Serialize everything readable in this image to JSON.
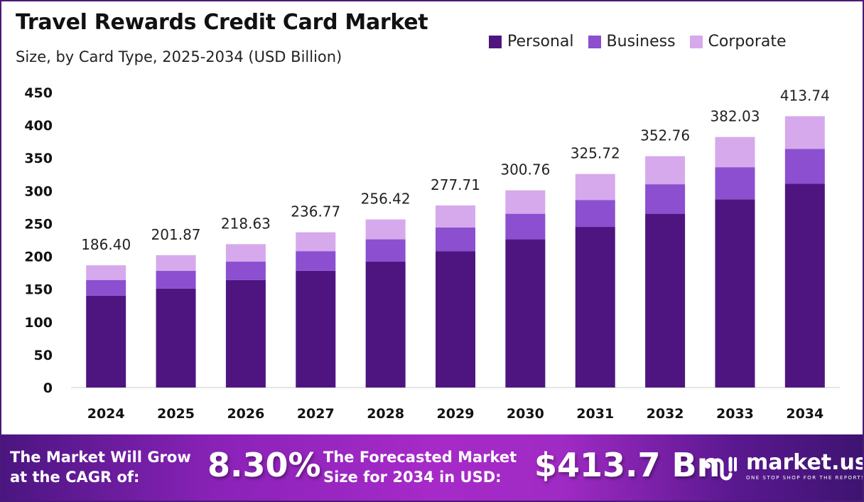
{
  "header": {
    "title": "Travel Rewards Credit Card Market",
    "subtitle": "Size, by Card Type, 2025-2034 (USD Billion)"
  },
  "chart_data": {
    "type": "bar",
    "stacked": true,
    "title": "Travel Rewards Credit Card Market",
    "subtitle": "Size, by Card Type, 2025-2034 (USD Billion)",
    "xlabel": "",
    "ylabel": "",
    "ylim": [
      0,
      450
    ],
    "yticks": [
      0,
      50,
      100,
      150,
      200,
      250,
      300,
      350,
      400,
      450
    ],
    "grid": false,
    "legend": "top-right",
    "categories": [
      "2024",
      "2025",
      "2026",
      "2027",
      "2028",
      "2029",
      "2030",
      "2031",
      "2032",
      "2033",
      "2034"
    ],
    "series": [
      {
        "name": "Personal",
        "color": "#4e1580",
        "values": [
          140,
          151,
          164,
          178,
          192,
          208,
          226,
          245,
          265,
          287,
          311
        ]
      },
      {
        "name": "Business",
        "color": "#8b4fd0",
        "values": [
          24,
          27,
          28,
          30,
          34,
          36,
          39,
          41,
          45,
          49,
          53
        ]
      },
      {
        "name": "Corporate",
        "color": "#d6a9ec",
        "values": [
          22.4,
          23.87,
          26.63,
          28.77,
          30.42,
          33.71,
          35.76,
          39.72,
          42.76,
          46.03,
          49.74
        ]
      }
    ],
    "totals": [
      "186.40",
      "201.87",
      "218.63",
      "236.77",
      "256.42",
      "277.71",
      "300.76",
      "325.72",
      "352.76",
      "382.03",
      "413.74"
    ]
  },
  "footer": {
    "cagr_label_line1": "The Market Will Grow",
    "cagr_label_line2": "at the CAGR of:",
    "cagr_value": "8.30%",
    "forecast_label_line1": "The Forecasted Market",
    "forecast_label_line2": "Size for 2034 in USD:",
    "forecast_value": "$413.7 Bn",
    "logo_name": "market.us",
    "logo_tagline": "ONE STOP SHOP FOR THE REPORTS"
  }
}
